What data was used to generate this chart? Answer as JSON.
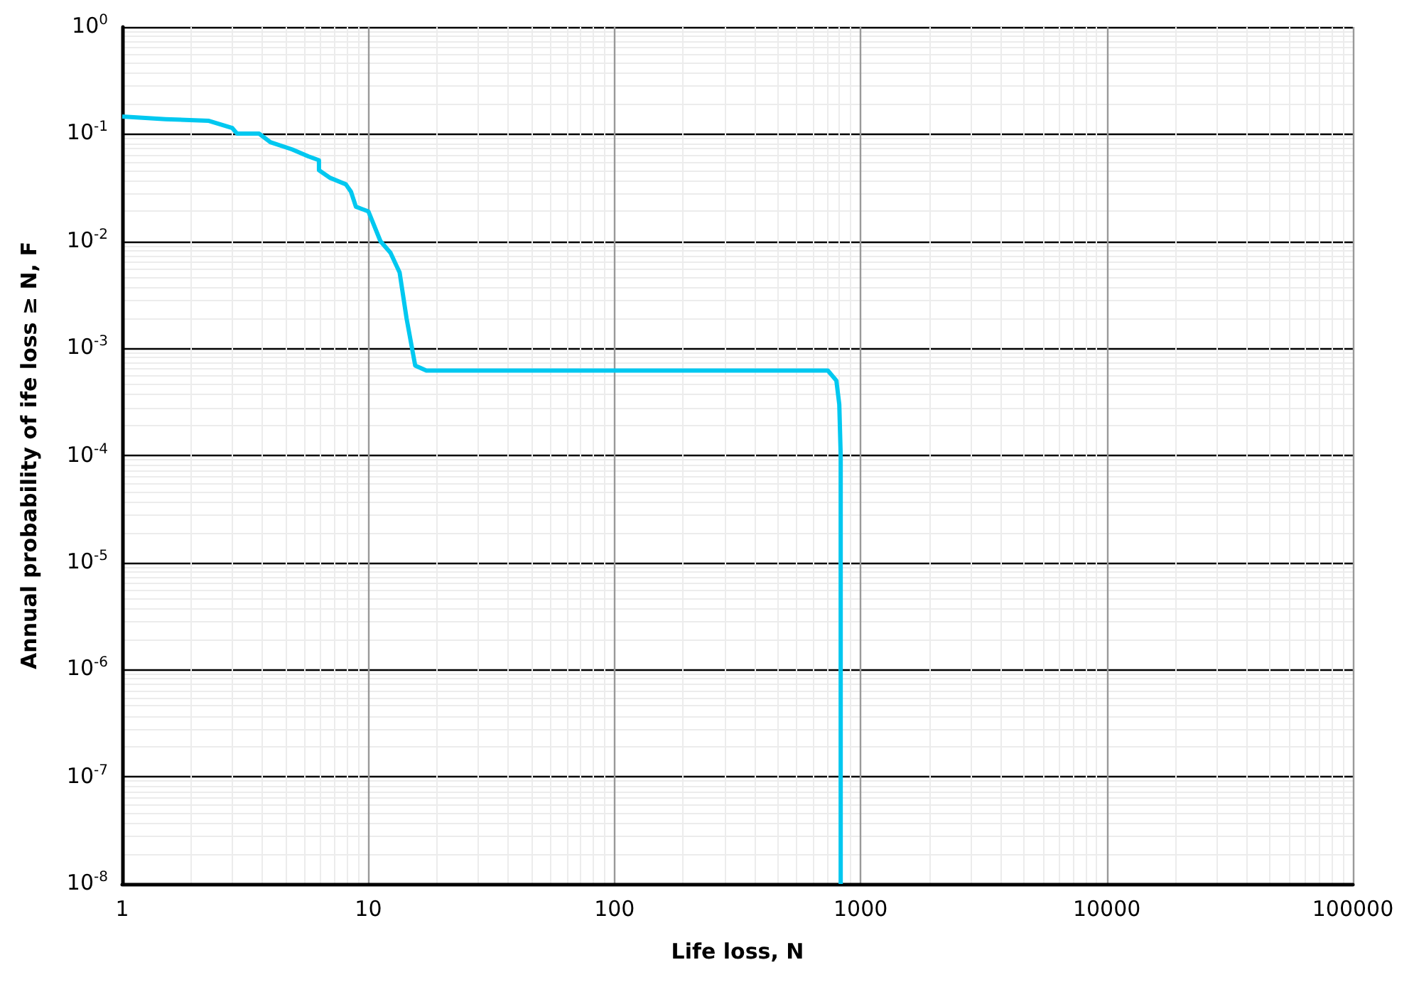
{
  "chart_data": {
    "type": "line",
    "xlabel": "Life loss, N",
    "ylabel": "Annual probability of ife loss ≥ N, F",
    "log": "xy",
    "grid": true,
    "marker": "none",
    "line_style": "solid",
    "xlim": [
      1,
      100000
    ],
    "xticks": [
      1,
      10,
      100,
      1000,
      10000,
      100000
    ],
    "ylim": [
      1e-08,
      1
    ],
    "yticks": [
      {
        "value": 1e-08,
        "label": "10$^{-8}$"
      },
      {
        "value": 1e-07,
        "label": "10$^{-7}$"
      },
      {
        "value": 1e-06,
        "label": "10$^{-6}$"
      },
      {
        "value": 1e-05,
        "label": "10$^{-5}$"
      },
      {
        "value": 0.0001,
        "label": "10$^{-4}$"
      },
      {
        "value": 0.001,
        "label": "10$^{-3}$"
      },
      {
        "value": 0.01,
        "label": "10$^{-2}$"
      },
      {
        "value": 0.1,
        "label": "10$^{-1}$"
      },
      {
        "value": 1,
        "label": "10$^{0}$"
      }
    ],
    "series": [
      {
        "color": "#00c8f0",
        "x": [
          1,
          1.5,
          2.25,
          2.8,
          2.93,
          3.6,
          4,
          4.9,
          5.7,
          6.3,
          6.3,
          7,
          8.1,
          8.5,
          8.9,
          10,
          11.2,
          12.3,
          13.4,
          14.3,
          15.5,
          17.2,
          736,
          797,
          819,
          830,
          830
        ],
        "values": [
          0.146,
          0.138,
          0.133,
          0.114,
          0.101,
          0.101,
          0.084,
          0.072,
          0.062,
          0.057,
          0.046,
          0.039,
          0.034,
          0.029,
          0.021,
          0.019,
          0.01,
          0.0078,
          0.0051,
          0.0019,
          0.00069,
          0.00062,
          0.00062,
          0.0005,
          0.0003,
          0.0001,
          1e-08
        ]
      }
    ]
  }
}
